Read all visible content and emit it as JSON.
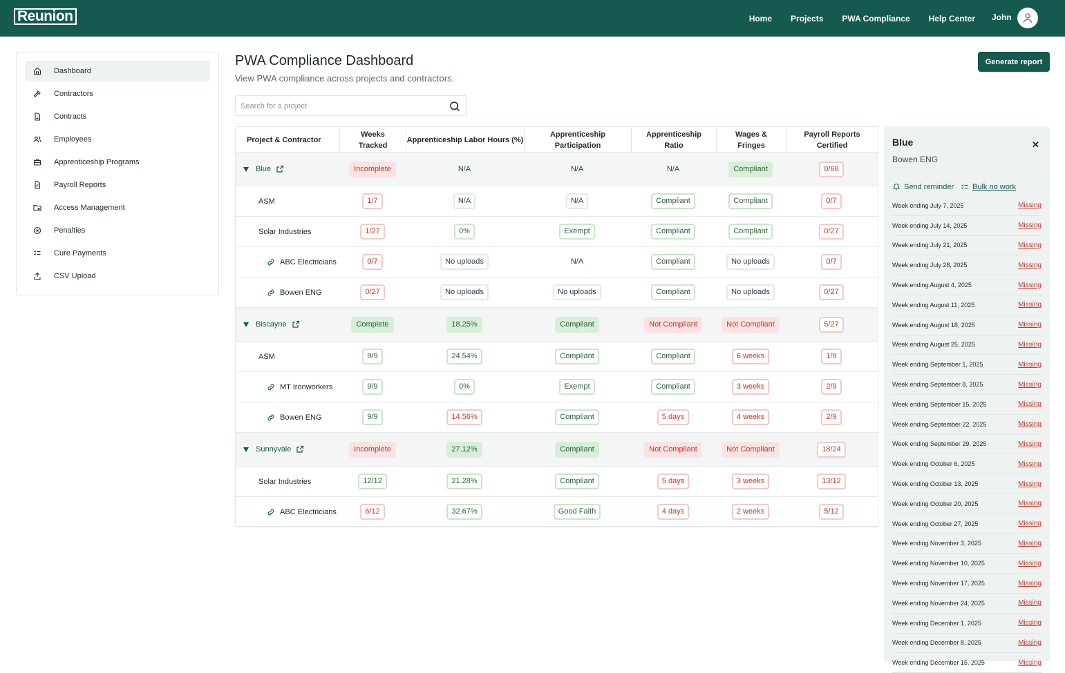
{
  "app": {
    "logo": "Reunion"
  },
  "nav": {
    "items": [
      "Home",
      "Projects",
      "PWA Compliance",
      "Help Center"
    ],
    "user": "John"
  },
  "sidebar": {
    "items": [
      {
        "label": "Dashboard",
        "icon": "home-icon",
        "active": true
      },
      {
        "label": "Contractors",
        "icon": "hammer-icon"
      },
      {
        "label": "Contracts",
        "icon": "file-icon"
      },
      {
        "label": "Employees",
        "icon": "users-icon"
      },
      {
        "label": "Apprenticeship Programs",
        "icon": "briefcase-icon"
      },
      {
        "label": "Payroll Reports",
        "icon": "report-icon"
      },
      {
        "label": "Access Management",
        "icon": "folder-key-icon"
      },
      {
        "label": "Penalties",
        "icon": "circle-x-icon"
      },
      {
        "label": "Cure Payments",
        "icon": "list-check-icon"
      },
      {
        "label": "CSV Upload",
        "icon": "upload-icon"
      }
    ]
  },
  "header": {
    "title": "PWA Compliance Dashboard",
    "subtitle": "View PWA compliance across projects and contractors.",
    "generate_label": "Generate report"
  },
  "search": {
    "placeholder": "Search for a project",
    "value": ""
  },
  "table": {
    "columns": [
      "Project & Contractor",
      "Weeks Tracked",
      "Apprenticeship Labor Hours (%)",
      "Apprenticeship Participation",
      "Apprenticeship Ratio",
      "Wages & Fringes",
      "Payroll Reports Certified"
    ],
    "rows": [
      {
        "type": "group",
        "name": "Blue",
        "cells": [
          [
            "Incomplete",
            "rf"
          ],
          [
            "N/A",
            "nt"
          ],
          [
            "N/A",
            "nt"
          ],
          [
            "N/A",
            "nt"
          ],
          [
            "Compliant",
            "gf"
          ],
          [
            "0/68",
            "r"
          ]
        ]
      },
      {
        "type": "contractor",
        "name": "ASM",
        "cells": [
          [
            "1/7",
            "r"
          ],
          [
            "N/A",
            "n"
          ],
          [
            "N/A",
            "n"
          ],
          [
            "Compliant",
            "g"
          ],
          [
            "Compliant",
            "g"
          ],
          [
            "0/7",
            "r"
          ]
        ]
      },
      {
        "type": "contractor",
        "name": "Solar Industries",
        "cells": [
          [
            "1/27",
            "r"
          ],
          [
            "0%",
            "g"
          ],
          [
            "Exempt",
            "g"
          ],
          [
            "Compliant",
            "g"
          ],
          [
            "Compliant",
            "g"
          ],
          [
            "0/27",
            "r"
          ]
        ]
      },
      {
        "type": "sub",
        "name": "ABC Electricians",
        "cells": [
          [
            "0/7",
            "r"
          ],
          [
            "No uploads",
            "n"
          ],
          [
            "N/A",
            "nt"
          ],
          [
            "Compliant",
            "g"
          ],
          [
            "No uploads",
            "n"
          ],
          [
            "0/7",
            "r"
          ]
        ]
      },
      {
        "type": "sub",
        "name": "Bowen ENG",
        "cells": [
          [
            "0/27",
            "r"
          ],
          [
            "No uploads",
            "n"
          ],
          [
            "No uploads",
            "n"
          ],
          [
            "Compliant",
            "g"
          ],
          [
            "No uploads",
            "n"
          ],
          [
            "0/27",
            "r"
          ]
        ]
      },
      {
        "type": "group",
        "name": "Biscayne",
        "cells": [
          [
            "Complete",
            "gf"
          ],
          [
            "18.25%",
            "gf"
          ],
          [
            "Compliant",
            "gf"
          ],
          [
            "Not Compliant",
            "rf"
          ],
          [
            "Not Compliant",
            "rf"
          ],
          [
            "5/27",
            "r"
          ]
        ]
      },
      {
        "type": "contractor",
        "name": "ASM",
        "cells": [
          [
            "9/9",
            "g"
          ],
          [
            "24.54%",
            "g"
          ],
          [
            "Compliant",
            "g"
          ],
          [
            "Compliant",
            "g"
          ],
          [
            "6 weeks",
            "r"
          ],
          [
            "1/9",
            "r"
          ]
        ]
      },
      {
        "type": "sub",
        "name": "MT Ironworkers",
        "cells": [
          [
            "9/9",
            "g"
          ],
          [
            "0%",
            "g"
          ],
          [
            "Exempt",
            "g"
          ],
          [
            "Compliant",
            "g"
          ],
          [
            "3 weeks",
            "r"
          ],
          [
            "2/9",
            "r"
          ]
        ]
      },
      {
        "type": "sub",
        "name": "Bowen ENG",
        "cells": [
          [
            "9/9",
            "g"
          ],
          [
            "14.56%",
            "r"
          ],
          [
            "Compliant",
            "g"
          ],
          [
            "5 days",
            "r"
          ],
          [
            "4 weeks",
            "r"
          ],
          [
            "2/9",
            "r"
          ]
        ]
      },
      {
        "type": "group",
        "name": "Sunnyvale",
        "cells": [
          [
            "Incomplete",
            "rf"
          ],
          [
            "27.12%",
            "gf"
          ],
          [
            "Compliant",
            "gf"
          ],
          [
            "Not Compliant",
            "rf"
          ],
          [
            "Not Compliant",
            "rf"
          ],
          [
            "18/24",
            "r"
          ]
        ]
      },
      {
        "type": "contractor",
        "name": "Solar Industries",
        "cells": [
          [
            "12/12",
            "g"
          ],
          [
            "21.28%",
            "g"
          ],
          [
            "Compliant",
            "g"
          ],
          [
            "5 days",
            "r"
          ],
          [
            "3 weeks",
            "r"
          ],
          [
            "13/12",
            "r"
          ]
        ]
      },
      {
        "type": "sub",
        "name": "ABC Electricians",
        "cells": [
          [
            "6/12",
            "r"
          ],
          [
            "32.67%",
            "g"
          ],
          [
            "Good Faith",
            "g"
          ],
          [
            "4 days",
            "r"
          ],
          [
            "2 weeks",
            "r"
          ],
          [
            "5/12",
            "r"
          ]
        ]
      }
    ]
  },
  "panel": {
    "title": "Blue",
    "subtitle": "Bowen ENG",
    "send_reminder": "Send reminder",
    "bulk_no_work": "Bulk no work",
    "weeks": [
      "Week ending July 7, 2025",
      "Week ending July 14, 2025",
      "Week ending July 21, 2025",
      "Week ending July 28, 2025",
      "Week ending August 4, 2025",
      "Week ending August 11, 2025",
      "Week ending August 18, 2025",
      "Week ending August 25, 2025",
      "Week ending September 1, 2025",
      "Week ending September 8, 2025",
      "Week ending September 15, 2025",
      "Week ending September 22, 2025",
      "Week ending September 29, 2025",
      "Week ending October 6, 2025",
      "Week ending October 13, 2025",
      "Week ending October 20, 2025",
      "Week ending October 27, 2025",
      "Week ending November 3, 2025",
      "Week ending November 10, 2025",
      "Week ending November 17, 2025",
      "Week ending November 24, 2025",
      "Week ending December 1, 2025",
      "Week ending December 8, 2025",
      "Week ending December 15, 2025"
    ],
    "status": "Missing"
  },
  "colors": {
    "brand": "#145a4e",
    "danger": "#c0392b",
    "success": "#2d5f3a"
  }
}
